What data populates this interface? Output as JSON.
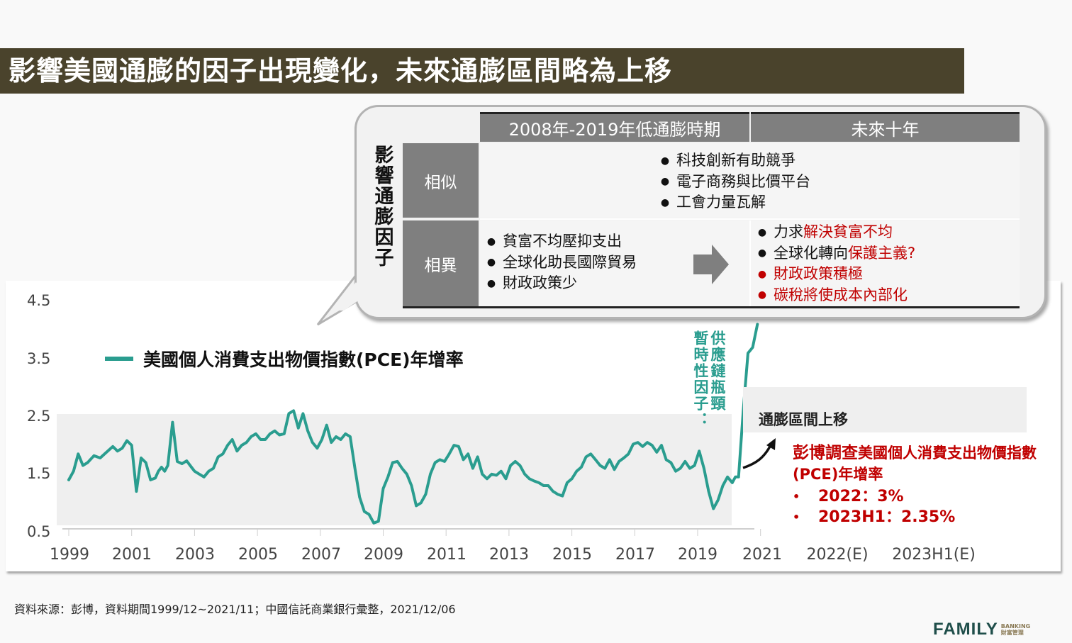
{
  "header": {
    "title": "影響美國通膨的因子出現變化，未來通膨區間略為上移",
    "bg_color": "#4a432c"
  },
  "callout": {
    "vertical_label": "影響通膨因子",
    "columns": [
      "2008年-2019年低通膨時期",
      "未來十年"
    ],
    "rows": [
      {
        "label": "相似",
        "merged_items": [
          "科技創新有助競爭",
          "電子商務與比價平台",
          "工會力量瓦解"
        ]
      },
      {
        "label": "相異",
        "past_items": [
          "貧富不均壓抑支出",
          "全球化助長國際貿易",
          "財政政策少"
        ],
        "arrow_icon": "arrow-right-icon",
        "future_items": [
          {
            "prefix": "力求",
            "highlight": "解決貧富不均",
            "bullet_red": false
          },
          {
            "prefix": "全球化轉向",
            "highlight": "保護主義?",
            "bullet_red": false
          },
          {
            "prefix": "",
            "highlight": "財政政策積極",
            "bullet_red": true
          },
          {
            "prefix": "",
            "highlight": "碳稅將使成本內部化",
            "bullet_red": true
          }
        ]
      }
    ]
  },
  "chart": {
    "legend_label": "美國個人消費支出物價指數(PCE)年增率",
    "y_ticks": [
      "4.5",
      "3.5",
      "2.5",
      "1.5",
      "0.5"
    ],
    "x_ticks": [
      "1999",
      "2001",
      "2003",
      "2005",
      "2007",
      "2009",
      "2011",
      "2013",
      "2015",
      "2017",
      "2019",
      "2021",
      "2022(E)",
      "2023H1(E)"
    ],
    "annotation_supply": "供應鏈瓶頸",
    "annotation_temporary": "暫時性因子：",
    "range_label": "通膨區間上移",
    "forecast_title_big": "彭博調查",
    "forecast_title_rest": "美國個人消費支出物價指數(PCE)年增率",
    "forecasts": [
      {
        "label": "2022：3%"
      },
      {
        "label": "2023H1：2.35%"
      }
    ]
  },
  "colors": {
    "line": "#2a9d8f",
    "accent_red": "#c00000",
    "table_gray": "#7f7f7f",
    "band_gray": "#efefef"
  },
  "chart_data": {
    "type": "line",
    "title": "美國個人消費支出物價指數(PCE)年增率",
    "xlabel": "",
    "ylabel": "",
    "ylim": [
      0.5,
      4.5
    ],
    "y_ticks": [
      0.5,
      1.5,
      2.5,
      3.5,
      4.5
    ],
    "x_tick_labels": [
      "1999",
      "2001",
      "2003",
      "2005",
      "2007",
      "2009",
      "2011",
      "2013",
      "2015",
      "2017",
      "2019",
      "2021",
      "2022(E)",
      "2023H1(E)"
    ],
    "grid": false,
    "legend_position": "top-left",
    "shaded_bands": [
      {
        "label": "2008年-2019年低通膨時期 range",
        "x_from": 1999.0,
        "x_to": 2020.2,
        "y_from": 0.6,
        "y_to": 2.5
      },
      {
        "label": "通膨區間上移",
        "x_from": 2020.2,
        "x_to": 2024.5,
        "y_from": 2.05,
        "y_to": 2.85
      }
    ],
    "series": [
      {
        "name": "美國個人消費支出物價指數(PCE)年增率",
        "x": [
          1999.0,
          1999.15,
          1999.3,
          1999.45,
          1999.6,
          1999.8,
          2000.0,
          2000.2,
          2000.4,
          2000.55,
          2000.7,
          2000.85,
          2001.0,
          2001.15,
          2001.3,
          2001.45,
          2001.6,
          2001.75,
          2001.85,
          2001.95,
          2002.05,
          2002.15,
          2002.3,
          2002.45,
          2002.6,
          2002.75,
          2002.9,
          2003.0,
          2003.15,
          2003.3,
          2003.45,
          2003.6,
          2003.75,
          2003.9,
          2004.05,
          2004.2,
          2004.35,
          2004.5,
          2004.65,
          2004.8,
          2004.95,
          2005.1,
          2005.25,
          2005.4,
          2005.55,
          2005.7,
          2005.85,
          2006.0,
          2006.15,
          2006.3,
          2006.45,
          2006.6,
          2006.75,
          2006.9,
          2007.05,
          2007.2,
          2007.35,
          2007.5,
          2007.65,
          2007.8,
          2007.95,
          2008.1,
          2008.25,
          2008.4,
          2008.55,
          2008.7,
          2008.85,
          2009.0,
          2009.15,
          2009.3,
          2009.45,
          2009.6,
          2009.75,
          2009.9,
          2010.05,
          2010.2,
          2010.35,
          2010.5,
          2010.65,
          2010.8,
          2010.95,
          2011.1,
          2011.25,
          2011.4,
          2011.55,
          2011.7,
          2011.85,
          2012.0,
          2012.15,
          2012.3,
          2012.45,
          2012.6,
          2012.75,
          2012.9,
          2013.05,
          2013.2,
          2013.35,
          2013.5,
          2013.65,
          2013.8,
          2013.95,
          2014.1,
          2014.25,
          2014.4,
          2014.55,
          2014.7,
          2014.85,
          2015.0,
          2015.15,
          2015.3,
          2015.45,
          2015.6,
          2015.75,
          2015.9,
          2016.05,
          2016.2,
          2016.35,
          2016.5,
          2016.65,
          2016.8,
          2016.95,
          2017.1,
          2017.25,
          2017.4,
          2017.55,
          2017.7,
          2017.85,
          2018.0,
          2018.15,
          2018.3,
          2018.45,
          2018.6,
          2018.75,
          2018.9,
          2019.05,
          2019.2,
          2019.35,
          2019.5,
          2019.65,
          2019.8,
          2019.95,
          2020.1,
          2020.2,
          2020.3,
          2020.45,
          2020.6,
          2020.75,
          2020.9
        ],
        "y": [
          1.4,
          1.55,
          1.85,
          1.65,
          1.7,
          1.82,
          1.78,
          1.88,
          1.98,
          1.9,
          1.95,
          2.08,
          2.0,
          1.2,
          1.78,
          1.7,
          1.4,
          1.43,
          1.55,
          1.62,
          1.55,
          1.65,
          2.4,
          1.72,
          1.68,
          1.73,
          1.62,
          1.55,
          1.5,
          1.45,
          1.55,
          1.6,
          1.8,
          1.85,
          2.0,
          2.1,
          1.9,
          2.0,
          2.05,
          2.15,
          2.2,
          2.1,
          2.1,
          2.2,
          2.25,
          2.18,
          2.2,
          2.55,
          2.6,
          2.3,
          2.55,
          2.25,
          2.05,
          1.95,
          2.1,
          2.35,
          2.05,
          2.15,
          2.1,
          2.2,
          2.15,
          1.6,
          1.1,
          0.85,
          0.8,
          0.65,
          0.68,
          1.25,
          1.45,
          1.7,
          1.72,
          1.6,
          1.5,
          1.3,
          0.95,
          1.0,
          1.15,
          1.5,
          1.7,
          1.75,
          1.72,
          1.85,
          2.0,
          1.98,
          1.75,
          1.85,
          1.6,
          1.8,
          1.5,
          1.42,
          1.5,
          1.48,
          1.55,
          1.42,
          1.65,
          1.72,
          1.65,
          1.5,
          1.42,
          1.38,
          1.35,
          1.3,
          1.3,
          1.2,
          1.15,
          1.12,
          1.35,
          1.42,
          1.55,
          1.62,
          1.8,
          1.85,
          1.75,
          1.65,
          1.6,
          1.75,
          1.58,
          1.72,
          1.78,
          1.85,
          2.02,
          2.05,
          1.98,
          2.05,
          2.0,
          1.88,
          2.0,
          1.75,
          1.7,
          1.55,
          1.6,
          1.72,
          1.6,
          1.65,
          1.9,
          1.6,
          1.2,
          0.9,
          1.05,
          1.3,
          1.45,
          1.35,
          1.45,
          1.45,
          2.6,
          3.6,
          3.7,
          4.1
        ]
      },
      {
        "name": "Forecast (Bloomberg survey)",
        "x": [
          "2022(E)",
          "2023H1(E)"
        ],
        "y": [
          3.0,
          2.35
        ]
      }
    ],
    "annotations": [
      {
        "text": "暫時性因子：供應鏈瓶頸",
        "near_x": 2020.5,
        "color": "#2a9d8f"
      },
      {
        "text": "通膨區間上移",
        "near_x": 2022
      },
      {
        "text": "彭博調查美國個人消費支出物價指數(PCE)年增率 • 2022：3% • 2023H1：2.35%",
        "color": "#c00000"
      }
    ]
  },
  "footer": {
    "source": "資料來源：彭博，資料期間1999/12~2021/11；中國信託商業銀行彙整，2021/12/06",
    "logo_main": "FAMILY",
    "logo_sub": "BANKING",
    "logo_cn": "財富管理"
  }
}
